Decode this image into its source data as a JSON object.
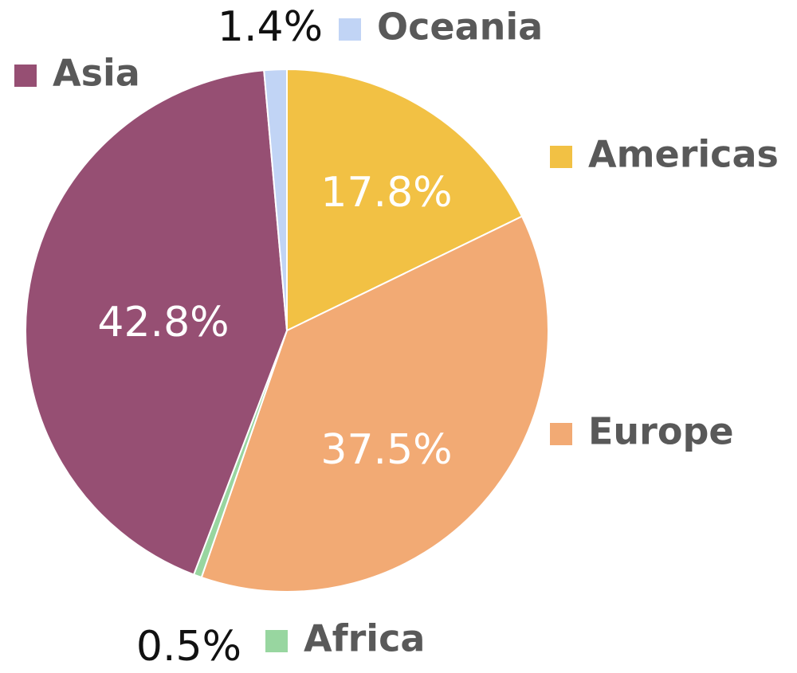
{
  "chart_data": {
    "type": "pie",
    "categories": [
      "Americas",
      "Europe",
      "Africa",
      "Asia",
      "Oceania"
    ],
    "values": [
      17.8,
      37.5,
      0.5,
      42.8,
      1.4
    ],
    "value_labels": [
      "17.8%",
      "37.5%",
      "0.5%",
      "42.8%",
      "1.4%"
    ],
    "colors": [
      "#f2c144",
      "#f2aa74",
      "#98d6a0",
      "#964f73",
      "#c1d4f5"
    ],
    "legend": "beside-slices"
  }
}
